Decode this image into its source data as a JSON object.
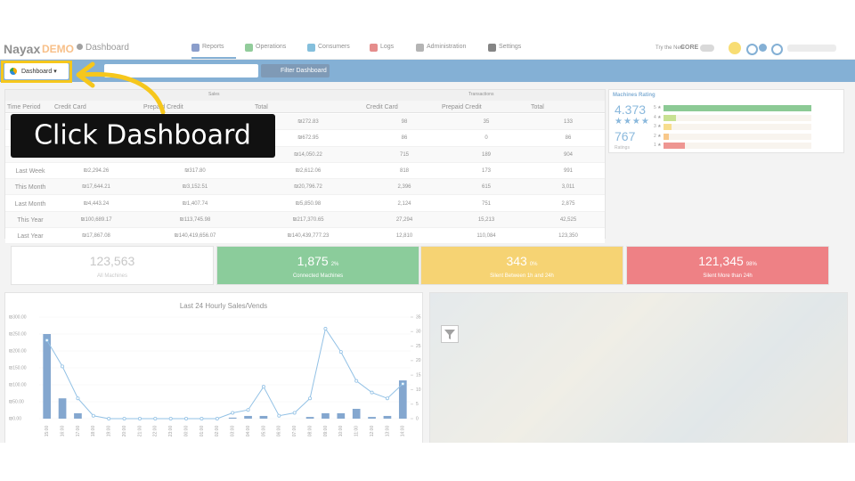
{
  "header": {
    "logo": "Nayax",
    "logo_badge": "DEMO",
    "page": "Dashboard",
    "nav": [
      "Reports",
      "Operations",
      "Consumers",
      "Logs",
      "Administration",
      "Settings"
    ],
    "promo": "Try the New",
    "promo_brand": "CORE"
  },
  "toolbar": {
    "dashboard_button": "Dashboard",
    "filter_button": "Filter Dashboard"
  },
  "table": {
    "group_headers": [
      "Sales",
      "Transactions"
    ],
    "columns": [
      "Time Period",
      "Credit Card",
      "Prepaid Credit",
      "Total",
      "Credit Card",
      "Prepaid Credit",
      "Total"
    ],
    "rows": [
      [
        null,
        null,
        null,
        "₪272.83",
        "98",
        "35",
        "133"
      ],
      [
        null,
        null,
        null,
        "₪672.95",
        "86",
        "0",
        "86"
      ],
      [
        null,
        null,
        null,
        "₪14,050.22",
        "715",
        "189",
        "904"
      ],
      [
        "Last Week",
        "₪2,294.26",
        "₪317.80",
        "₪2,612.06",
        "818",
        "173",
        "991"
      ],
      [
        "This Month",
        "₪17,644.21",
        "₪3,152.51",
        "₪20,796.72",
        "2,396",
        "615",
        "3,011"
      ],
      [
        "Last Month",
        "₪4,443.24",
        "₪1,407.74",
        "₪5,850.98",
        "2,124",
        "751",
        "2,875"
      ],
      [
        "This Year",
        "₪100,689.17",
        "₪113,745.98",
        "₪217,370.65",
        "27,294",
        "15,213",
        "42,525"
      ],
      [
        "Last Year",
        "₪17,867.08",
        "₪140,419,656.07",
        "₪140,439,777.23",
        "12,810",
        "110,084",
        "123,350"
      ]
    ]
  },
  "ratings": {
    "title": "Machines Rating",
    "average": "4.373",
    "count": "767",
    "count_label": "Ratings",
    "bars": [
      {
        "label": "5 ★",
        "value": 580,
        "color": "#2e9e3e"
      },
      {
        "label": "4 ★",
        "value": 50,
        "color": "#9cc93a"
      },
      {
        "label": "3 ★",
        "value": 32,
        "color": "#f1c232"
      },
      {
        "label": "2 ★",
        "value": 20,
        "color": "#f39c2b"
      },
      {
        "label": "1 ★",
        "value": 85,
        "color": "#e0403a"
      }
    ]
  },
  "status": [
    {
      "value": "123,563",
      "label": "All Machines",
      "color": "#ffffff"
    },
    {
      "value": "1,875",
      "percent": "2%",
      "label": "Connected Machines",
      "color": "#2ca24a"
    },
    {
      "value": "343",
      "percent": "0%",
      "label": "Silent Between 1h and 24h",
      "color": "#efb000"
    },
    {
      "value": "121,345",
      "percent": "98%",
      "label": "Silent More than 24h",
      "color": "#e11a22"
    }
  ],
  "chart_data": {
    "type": "bar",
    "title": "Last 24 Hourly Sales/Vends",
    "categories": [
      "15:00",
      "16:00",
      "17:00",
      "18:00",
      "19:00",
      "20:00",
      "21:00",
      "22:00",
      "23:00",
      "00:00",
      "01:00",
      "02:00",
      "03:00",
      "04:00",
      "05:00",
      "06:00",
      "07:00",
      "08:00",
      "09:00",
      "10:00",
      "11:00",
      "12:00",
      "13:00",
      "14:00"
    ],
    "series": [
      {
        "color": "#1f5fa8",
        "values": [
          250,
          60,
          16,
          0,
          0,
          0,
          0,
          0,
          0,
          0,
          0,
          0,
          3,
          8,
          8,
          0,
          0,
          5,
          16,
          16,
          29,
          5,
          8,
          113
        ]
      },
      {
        "color": "#3a8fd0",
        "axis": "y2",
        "values": [
          27,
          18,
          7,
          1,
          0,
          0,
          0,
          0,
          0,
          0,
          0,
          0,
          2,
          3,
          11,
          1,
          2,
          7,
          31,
          23,
          13,
          9,
          7,
          12
        ]
      }
    ],
    "ylim": [
      0,
      300
    ],
    "yticks": [
      {
        "value": 0,
        "label": "₪0.00"
      },
      {
        "value": 50,
        "label": "₪50.00"
      },
      {
        "value": 100,
        "label": "₪100.00"
      },
      {
        "value": 150,
        "label": "₪150.00"
      },
      {
        "value": 200,
        "label": "₪200.00"
      },
      {
        "value": 250,
        "label": "₪250.00"
      },
      {
        "value": 300,
        "label": "₪300.00"
      }
    ],
    "y2lim": [
      0,
      35
    ],
    "y2ticks": [
      0,
      5,
      10,
      15,
      20,
      25,
      30,
      35
    ],
    "grid": true
  },
  "callout": {
    "text": "Click Dashboard"
  }
}
